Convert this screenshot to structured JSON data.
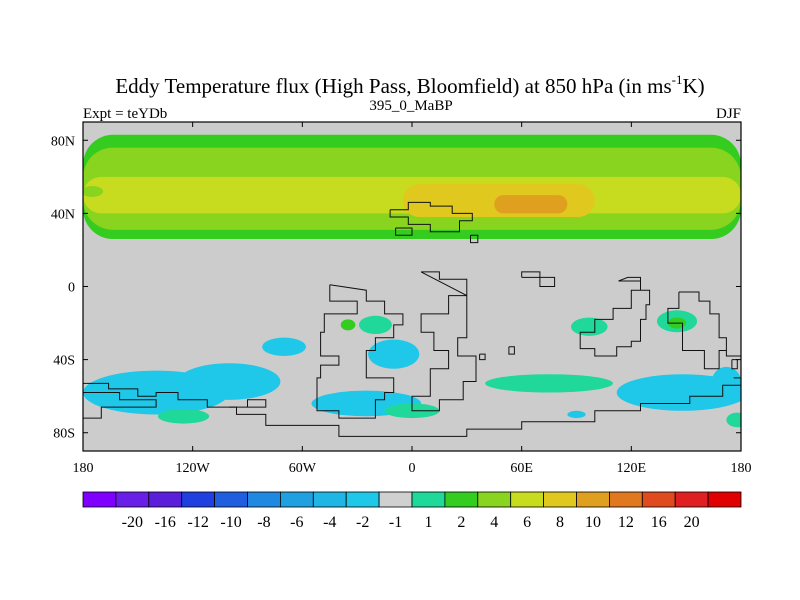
{
  "chart_data": {
    "type": "heatmap",
    "title": {
      "main": "Eddy Temperature flux (High Pass, Bloomfield) at 850 hPa (in ms",
      "sup": "-1",
      "tail": "K)"
    },
    "left_label": "Expt = teYDb",
    "center_label": "395_0_MaBP",
    "right_label": "DJF",
    "x_range": [
      -180,
      180
    ],
    "y_range": [
      -90,
      90
    ],
    "x_ticks": [
      {
        "value": -180,
        "label": "180"
      },
      {
        "value": -120,
        "label": "120W"
      },
      {
        "value": -60,
        "label": "60W"
      },
      {
        "value": 0,
        "label": "0"
      },
      {
        "value": 60,
        "label": "60E"
      },
      {
        "value": 120,
        "label": "120E"
      },
      {
        "value": 180,
        "label": "180"
      }
    ],
    "y_ticks": [
      {
        "value": 80,
        "label": "80N"
      },
      {
        "value": 40,
        "label": "40N"
      },
      {
        "value": 0,
        "label": "0"
      },
      {
        "value": -40,
        "label": "40S"
      },
      {
        "value": -80,
        "label": "80S"
      }
    ],
    "background_color": "#cccccc",
    "colorbar": {
      "colors": [
        "#7f00ff",
        "#6a1fe8",
        "#5a1fd8",
        "#1f3fe0",
        "#1f5fdf",
        "#1f88e0",
        "#1fa0e0",
        "#1fb6e6",
        "#1fc8e8",
        "#d0d0d0",
        "#1fd89a",
        "#33cc1f",
        "#88d41f",
        "#c8dc1f",
        "#e0c81f",
        "#e0a01f",
        "#e0781f",
        "#e04a1f",
        "#e02020",
        "#e00000"
      ],
      "labels": [
        "-20",
        "-16",
        "-12",
        "-10",
        "-8",
        "-6",
        "-4",
        "-2",
        "-1",
        "1",
        "2",
        "4",
        "6",
        "8",
        "10",
        "12",
        "16",
        "20"
      ]
    },
    "fields": [
      {
        "level": "green",
        "color": "#33cc1f",
        "lon": [
          -180,
          180
        ],
        "lat": [
          26,
          83
        ]
      },
      {
        "level": "lightgreen",
        "color": "#88d41f",
        "lon": [
          -180,
          180
        ],
        "lat": [
          31,
          76
        ]
      },
      {
        "level": "yellowgreen",
        "color": "#c8dc1f",
        "lon": [
          -180,
          180
        ],
        "lat": [
          40,
          60
        ]
      },
      {
        "level": "yellow",
        "color": "#e0c81f",
        "lon": [
          -5,
          100
        ],
        "lat": [
          38,
          56
        ]
      },
      {
        "level": "orange",
        "color": "#e0a01f",
        "lon": [
          45,
          85
        ],
        "lat": [
          40,
          50
        ]
      }
    ],
    "patches": [
      {
        "color": "#1fc8e8",
        "lon": -140,
        "lat": -58,
        "rlon": 40,
        "rlat": 12
      },
      {
        "color": "#1fc8e8",
        "lon": -100,
        "lat": -52,
        "rlon": 28,
        "rlat": 10
      },
      {
        "color": "#1fc8e8",
        "lon": -25,
        "lat": -64,
        "rlon": 30,
        "rlat": 7
      },
      {
        "color": "#1fc8e8",
        "lon": -10,
        "lat": -37,
        "rlon": 14,
        "rlat": 8
      },
      {
        "color": "#1fc8e8",
        "lon": 148,
        "lat": -58,
        "rlon": 36,
        "rlat": 10
      },
      {
        "color": "#1fc8e8",
        "lon": 172,
        "lat": -52,
        "rlon": 8,
        "rlat": 8
      },
      {
        "color": "#1fc8e8",
        "lon": -70,
        "lat": -33,
        "rlon": 12,
        "rlat": 5
      },
      {
        "color": "#1fc8e8",
        "lon": 90,
        "lat": -70,
        "rlon": 5,
        "rlat": 2
      },
      {
        "color": "#1fd89a",
        "lon": -125,
        "lat": -71,
        "rlon": 14,
        "rlat": 4
      },
      {
        "color": "#1fd89a",
        "lon": 0,
        "lat": -68,
        "rlon": 15,
        "rlat": 4
      },
      {
        "color": "#1fd89a",
        "lon": 75,
        "lat": -53,
        "rlon": 35,
        "rlat": 5
      },
      {
        "color": "#1fd89a",
        "lon": -20,
        "lat": -21,
        "rlon": 9,
        "rlat": 5
      },
      {
        "color": "#1fd89a",
        "lon": 97,
        "lat": -22,
        "rlon": 10,
        "rlat": 5
      },
      {
        "color": "#1fd89a",
        "lon": 145,
        "lat": -19,
        "rlon": 11,
        "rlat": 6
      },
      {
        "color": "#1fd89a",
        "lon": 178,
        "lat": -73,
        "rlon": 6,
        "rlat": 4
      },
      {
        "color": "#33cc1f",
        "lon": -35,
        "lat": -21,
        "rlon": 4,
        "rlat": 3
      },
      {
        "color": "#33cc1f",
        "lon": 145,
        "lat": -20,
        "rlon": 5,
        "rlat": 3
      },
      {
        "color": "#88d41f",
        "lon": -175,
        "lat": 52,
        "rlon": 6,
        "rlat": 3
      }
    ],
    "coastlines": [
      [
        [
          -180,
          -53
        ],
        [
          -166,
          -53
        ],
        [
          -166,
          -56
        ],
        [
          -150,
          -56
        ],
        [
          -150,
          -60
        ],
        [
          -140,
          -60
        ],
        [
          -140,
          -58
        ],
        [
          -128,
          -58
        ],
        [
          -128,
          -62
        ],
        [
          -112,
          -62
        ],
        [
          -112,
          -66
        ],
        [
          -96,
          -66
        ],
        [
          -96,
          -70
        ],
        [
          -80,
          -70
        ],
        [
          -80,
          -76
        ],
        [
          -40,
          -76
        ],
        [
          -40,
          -82
        ],
        [
          30,
          -82
        ],
        [
          30,
          -78
        ],
        [
          60,
          -78
        ],
        [
          60,
          -74
        ],
        [
          100,
          -74
        ],
        [
          100,
          -68
        ],
        [
          125,
          -68
        ],
        [
          125,
          -64
        ],
        [
          152,
          -64
        ],
        [
          152,
          -60
        ],
        [
          170,
          -60
        ],
        [
          170,
          -54
        ],
        [
          180,
          -54
        ]
      ],
      [
        [
          -180,
          -58
        ],
        [
          -160,
          -58
        ],
        [
          -160,
          -62
        ],
        [
          -140,
          -62
        ],
        [
          -140,
          -66
        ],
        [
          -170,
          -66
        ],
        [
          -170,
          -72
        ],
        [
          -180,
          -72
        ]
      ],
      [
        [
          -100,
          -66
        ],
        [
          -90,
          -66
        ],
        [
          -90,
          -62
        ],
        [
          -80,
          -62
        ],
        [
          -80,
          -66
        ],
        [
          -100,
          -66
        ]
      ],
      [
        [
          -45,
          1
        ],
        [
          -45,
          -8
        ],
        [
          -30,
          -8
        ],
        [
          -30,
          -15
        ],
        [
          -48,
          -15
        ],
        [
          -48,
          -25
        ],
        [
          -50,
          -25
        ],
        [
          -50,
          -38
        ],
        [
          -40,
          -38
        ],
        [
          -40,
          -43
        ],
        [
          -50,
          -43
        ],
        [
          -50,
          -50
        ],
        [
          -52,
          -50
        ],
        [
          -52,
          -68
        ],
        [
          -40,
          -68
        ],
        [
          -40,
          -72
        ],
        [
          -20,
          -72
        ],
        [
          -20,
          -62
        ],
        [
          -15,
          -62
        ],
        [
          -15,
          -58
        ],
        [
          -10,
          -58
        ],
        [
          -10,
          -50
        ],
        [
          -25,
          -50
        ],
        [
          -25,
          -35
        ],
        [
          -20,
          -35
        ],
        [
          -20,
          -28
        ],
        [
          -10,
          -28
        ],
        [
          -10,
          -21
        ],
        [
          -5,
          -21
        ],
        [
          -5,
          -15
        ],
        [
          -15,
          -15
        ],
        [
          -15,
          -8
        ],
        [
          -25,
          -8
        ],
        [
          -25,
          -2
        ],
        [
          -45,
          1
        ]
      ],
      [
        [
          5,
          8
        ],
        [
          15,
          8
        ],
        [
          15,
          4
        ],
        [
          30,
          4
        ],
        [
          30,
          -5
        ],
        [
          20,
          -5
        ],
        [
          20,
          -15
        ],
        [
          5,
          -15
        ],
        [
          5,
          -25
        ],
        [
          12,
          -25
        ],
        [
          12,
          -35
        ],
        [
          20,
          -35
        ],
        [
          20,
          -45
        ],
        [
          10,
          -45
        ],
        [
          10,
          -60
        ],
        [
          0,
          -60
        ],
        [
          0,
          -68
        ],
        [
          15,
          -68
        ],
        [
          15,
          -62
        ],
        [
          28,
          -62
        ],
        [
          28,
          -52
        ],
        [
          35,
          -52
        ],
        [
          35,
          -38
        ],
        [
          25,
          -38
        ],
        [
          25,
          -28
        ],
        [
          30,
          -28
        ],
        [
          30,
          -5
        ],
        [
          5,
          8
        ]
      ],
      [
        [
          -12,
          42
        ],
        [
          -2,
          42
        ],
        [
          -2,
          46
        ],
        [
          10,
          46
        ],
        [
          10,
          44
        ],
        [
          22,
          44
        ],
        [
          22,
          40
        ],
        [
          33,
          40
        ],
        [
          33,
          36
        ],
        [
          26,
          36
        ],
        [
          26,
          30
        ],
        [
          10,
          30
        ],
        [
          10,
          34
        ],
        [
          -2,
          34
        ],
        [
          -2,
          38
        ],
        [
          -12,
          38
        ],
        [
          -12,
          42
        ]
      ],
      [
        [
          -9,
          32
        ],
        [
          0,
          32
        ],
        [
          0,
          28
        ],
        [
          -9,
          28
        ],
        [
          -9,
          32
        ]
      ],
      [
        [
          32,
          28
        ],
        [
          36,
          28
        ],
        [
          36,
          24
        ],
        [
          32,
          24
        ],
        [
          32,
          28
        ]
      ],
      [
        [
          60,
          5
        ],
        [
          78,
          5
        ],
        [
          78,
          0
        ],
        [
          70,
          0
        ],
        [
          70,
          8
        ],
        [
          60,
          8
        ],
        [
          60,
          5
        ]
      ],
      [
        [
          53,
          -33
        ],
        [
          56,
          -33
        ],
        [
          56,
          -37
        ],
        [
          53,
          -37
        ],
        [
          53,
          -33
        ]
      ],
      [
        [
          37,
          -37
        ],
        [
          40,
          -37
        ],
        [
          40,
          -40
        ],
        [
          37,
          -40
        ],
        [
          37,
          -37
        ]
      ],
      [
        [
          113,
          3
        ],
        [
          125,
          3
        ],
        [
          125,
          -2
        ],
        [
          120,
          -2
        ],
        [
          120,
          -12
        ],
        [
          110,
          -12
        ],
        [
          110,
          -18
        ],
        [
          100,
          -18
        ],
        [
          100,
          -25
        ],
        [
          92,
          -25
        ],
        [
          92,
          -34
        ],
        [
          100,
          -34
        ],
        [
          100,
          -38
        ],
        [
          112,
          -38
        ],
        [
          112,
          -33
        ],
        [
          120,
          -33
        ],
        [
          120,
          -30
        ],
        [
          125,
          -30
        ],
        [
          125,
          -18
        ],
        [
          128,
          -18
        ],
        [
          128,
          -10
        ],
        [
          130,
          -10
        ],
        [
          130,
          -2
        ],
        [
          125,
          -2
        ],
        [
          125,
          5
        ],
        [
          118,
          5
        ],
        [
          113,
          3
        ]
      ],
      [
        [
          146,
          -3
        ],
        [
          157,
          -3
        ],
        [
          157,
          -8
        ],
        [
          163,
          -8
        ],
        [
          163,
          -15
        ],
        [
          168,
          -15
        ],
        [
          168,
          -28
        ],
        [
          172,
          -28
        ],
        [
          172,
          -38
        ],
        [
          180,
          -38
        ]
      ],
      [
        [
          146,
          -3
        ],
        [
          146,
          -12
        ],
        [
          140,
          -12
        ],
        [
          140,
          -20
        ],
        [
          148,
          -20
        ],
        [
          148,
          -35
        ],
        [
          160,
          -35
        ],
        [
          160,
          -45
        ],
        [
          168,
          -45
        ],
        [
          168,
          -35
        ],
        [
          172,
          -35
        ]
      ],
      [
        [
          175,
          -40
        ],
        [
          178,
          -40
        ],
        [
          178,
          -45
        ],
        [
          175,
          -45
        ],
        [
          175,
          -40
        ]
      ],
      [
        [
          176,
          -50
        ],
        [
          180,
          -50
        ]
      ]
    ]
  }
}
